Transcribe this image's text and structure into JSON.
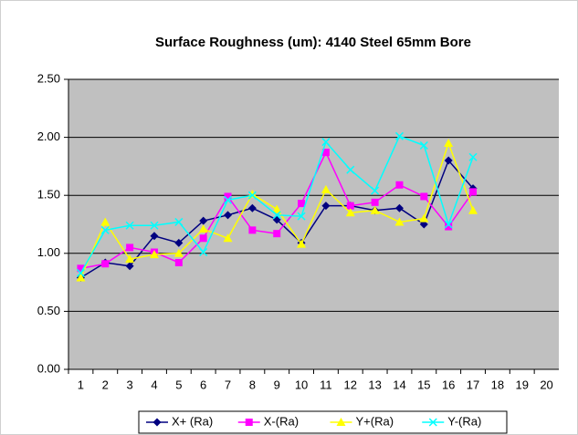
{
  "chart_data": {
    "type": "line",
    "title": "Surface Roughness (um): 4140 Steel 65mm Bore",
    "categories": [
      "1",
      "2",
      "3",
      "4",
      "5",
      "6",
      "7",
      "8",
      "9",
      "10",
      "11",
      "12",
      "13",
      "14",
      "15",
      "16",
      "17",
      "18",
      "19",
      "20"
    ],
    "series": [
      {
        "name": "X+ (Ra)",
        "color": "#000080",
        "marker": "diamond",
        "values": [
          0.79,
          0.92,
          0.89,
          1.15,
          1.09,
          1.28,
          1.33,
          1.39,
          1.29,
          1.09,
          1.41,
          1.41,
          1.37,
          1.39,
          1.25,
          1.8,
          1.56,
          null,
          null,
          null
        ]
      },
      {
        "name": "X-(Ra)",
        "color": "#ff00ff",
        "marker": "square",
        "values": [
          0.87,
          0.91,
          1.05,
          1.01,
          0.92,
          1.13,
          1.49,
          1.2,
          1.17,
          1.43,
          1.87,
          1.41,
          1.44,
          1.59,
          1.49,
          1.23,
          1.53,
          null,
          null,
          null
        ]
      },
      {
        "name": "Y+(Ra)",
        "color": "#ffff00",
        "marker": "triangle",
        "values": [
          0.79,
          1.27,
          0.95,
          0.99,
          1.0,
          1.21,
          1.13,
          1.51,
          1.38,
          1.08,
          1.55,
          1.35,
          1.37,
          1.27,
          1.3,
          1.95,
          1.37,
          null,
          null,
          null
        ]
      },
      {
        "name": "Y-(Ra)",
        "color": "#00ffff",
        "marker": "x",
        "values": [
          0.83,
          1.2,
          1.24,
          1.24,
          1.27,
          1.01,
          1.46,
          1.5,
          1.33,
          1.32,
          1.96,
          1.72,
          1.54,
          2.01,
          1.93,
          1.25,
          1.83,
          null,
          null,
          null
        ]
      }
    ],
    "ylim": [
      0,
      2.5
    ],
    "yticks": [
      {
        "value": 0,
        "label": "0.00"
      },
      {
        "value": 0.5,
        "label": "0.50"
      },
      {
        "value": 1,
        "label": "1.00"
      },
      {
        "value": 1.5,
        "label": "1.50"
      },
      {
        "value": 2,
        "label": "2.00"
      },
      {
        "value": 2.5,
        "label": "2.50"
      }
    ],
    "grid": true,
    "legend": "bottom"
  }
}
